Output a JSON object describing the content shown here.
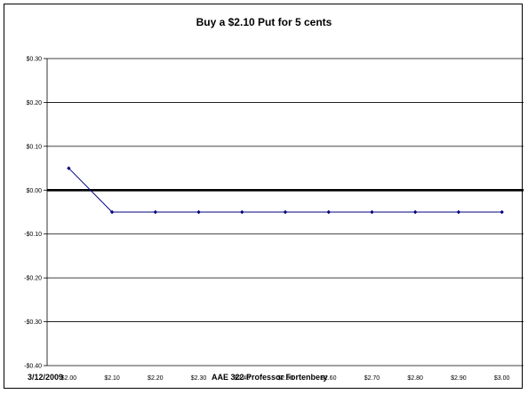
{
  "chart_data": {
    "type": "line",
    "title": "Buy a $2.10 Put for 5 cents",
    "xlabel": "",
    "ylabel": "",
    "categories": [
      "$2.00",
      "$2.10",
      "$2.20",
      "$2.30",
      "$2.40",
      "$2.50",
      "$2.60",
      "$2.70",
      "$2.80",
      "$2.90",
      "$3.00"
    ],
    "series": [
      {
        "values": [
          0.05,
          -0.05,
          -0.05,
          -0.05,
          -0.05,
          -0.05,
          -0.05,
          -0.05,
          -0.05,
          -0.05,
          -0.05
        ],
        "color": "#000080"
      }
    ],
    "ylim": [
      -0.4,
      0.3
    ],
    "yticks": [
      -0.4,
      -0.3,
      -0.2,
      -0.1,
      0.0,
      0.1,
      0.2,
      0.3
    ],
    "ytick_labels": [
      "-$0.40",
      "-$0.30",
      "-$0.20",
      "-$0.10",
      "$0.00",
      "$0.10",
      "$0.20",
      "$0.30"
    ],
    "grid": true,
    "zero_line": true
  },
  "footer": {
    "date": "3/12/2009",
    "course": "AAE 322 Professor Fortenbery"
  }
}
